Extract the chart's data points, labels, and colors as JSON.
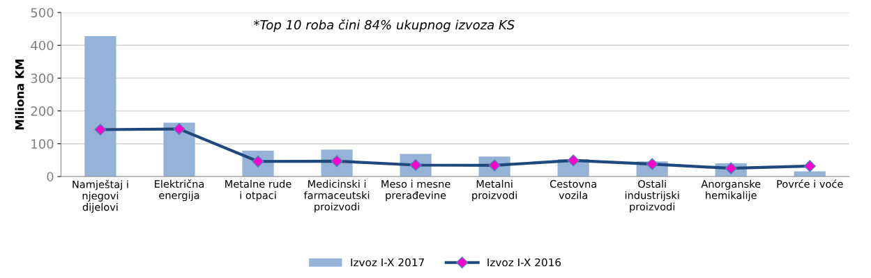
{
  "chart_data": {
    "type": "bar",
    "ylabel": "Miliona KM",
    "categories": [
      "Namještaj i\nnjegovi\ndijelovi",
      "Električna\nenergija",
      "Metalne rude\ni otpaci",
      "Medicinski i\nfarmaceutski\nproizvodi",
      "Meso i mesne\nprerađevine",
      "Metalni\nproizvodi",
      "Cestovna\nvozila",
      "Ostali\nindustrijski\nproizvodi",
      "Anorganske\nhemikalije",
      "Povrće i voće"
    ],
    "series": [
      {
        "name": "Izvoz I-X 2017",
        "color": "#95b3d7",
        "values": [
          428,
          164,
          79,
          82,
          69,
          61,
          53,
          46,
          40,
          16
        ]
      },
      {
        "name": "Izvoz I-X 2016",
        "type": "line",
        "color": "#1f497d",
        "marker": "diamond",
        "values": [
          143,
          145,
          46,
          47,
          35,
          34,
          49,
          38,
          25,
          32
        ]
      }
    ],
    "ylim": [
      0,
      500
    ],
    "yticks": [
      0,
      100,
      200,
      300,
      400,
      500
    ],
    "grid": "y",
    "legend": "bottom",
    "annotations": [
      "*Top 10 roba čini 84% ukupnog izvoza KS"
    ]
  }
}
